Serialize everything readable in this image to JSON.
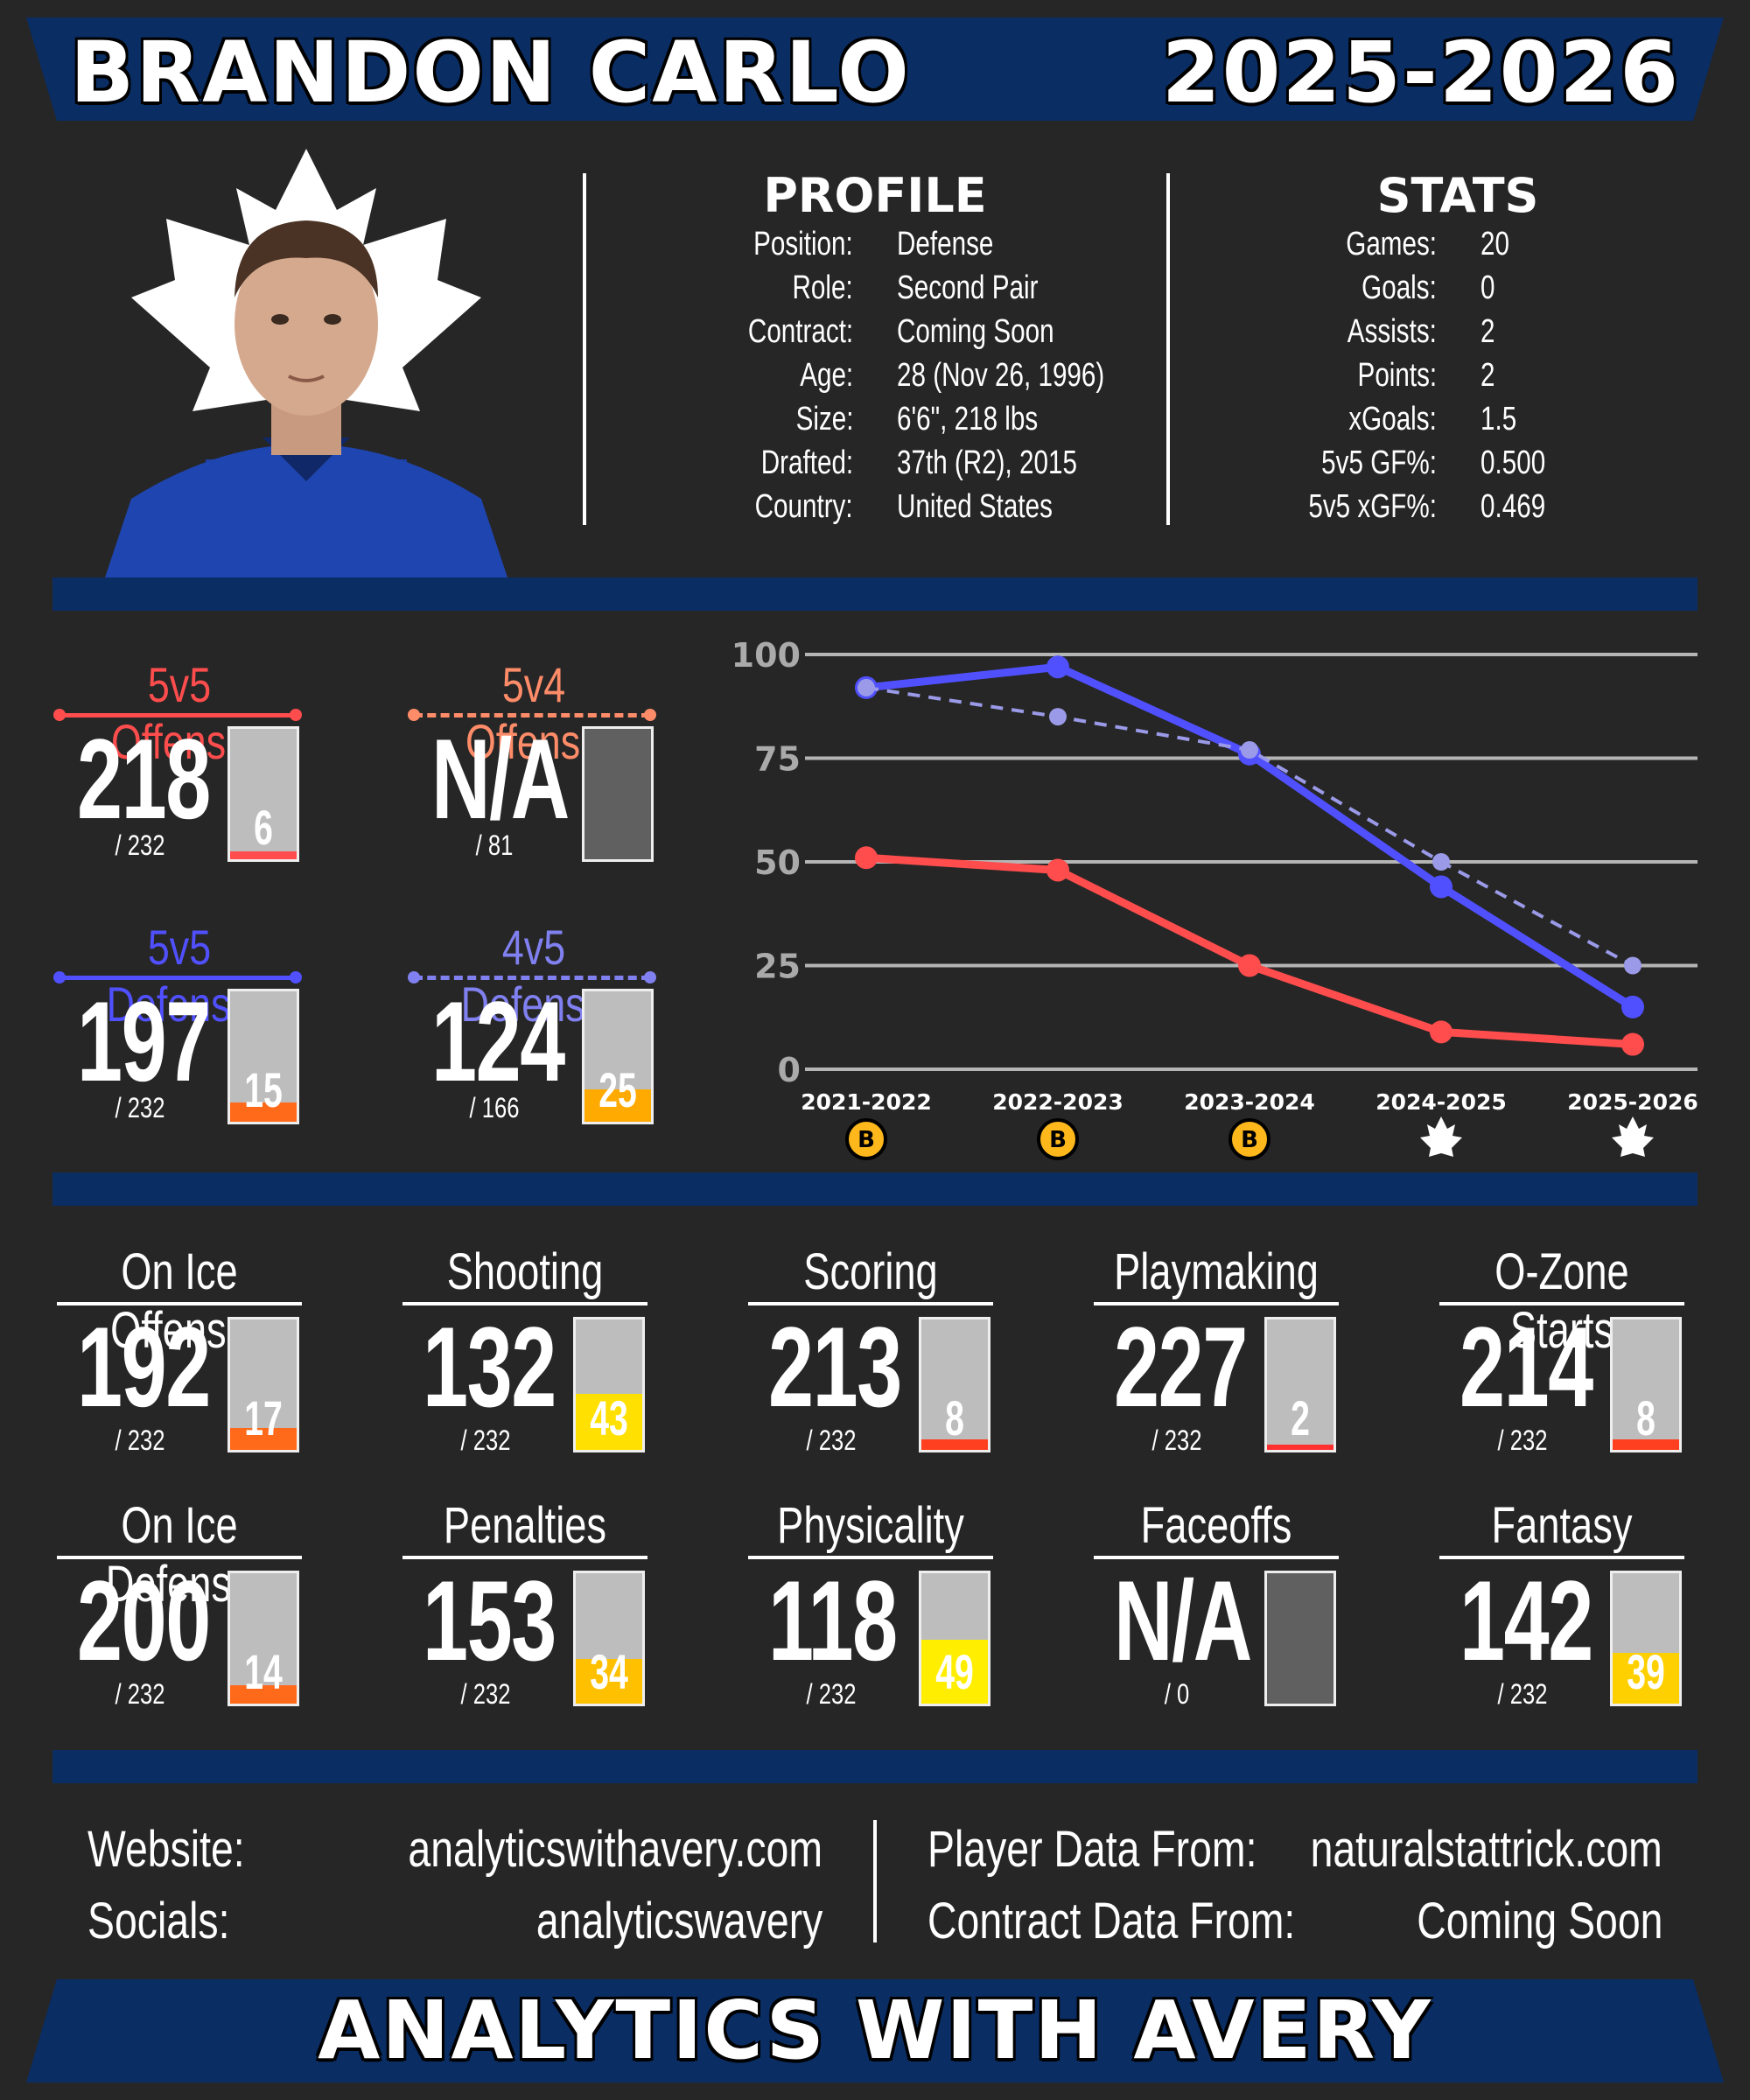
{
  "header": {
    "player_name": "BRANDON CARLO",
    "season": "2025-2026"
  },
  "profile": {
    "title": "PROFILE",
    "rows": [
      {
        "label": "Position:",
        "value": "Defense"
      },
      {
        "label": "Role:",
        "value": "Second Pair"
      },
      {
        "label": "Contract:",
        "value": "Coming Soon"
      },
      {
        "label": "Age:",
        "value": "28 (Nov 26, 1996)"
      },
      {
        "label": "Size:",
        "value": "6'6\", 218 lbs"
      },
      {
        "label": "Drafted:",
        "value": "37th (R2), 2015"
      },
      {
        "label": "Country:",
        "value": "United States"
      }
    ]
  },
  "stats": {
    "title": "STATS",
    "rows": [
      {
        "label": "Games:",
        "value": "20"
      },
      {
        "label": "Goals:",
        "value": "0"
      },
      {
        "label": "Assists:",
        "value": "2"
      },
      {
        "label": "Points:",
        "value": "2"
      },
      {
        "label": "xGoals:",
        "value": "1.5"
      },
      {
        "label": "5v5 GF%:",
        "value": "0.500"
      },
      {
        "label": "5v5 xGF%:",
        "value": "0.469"
      }
    ]
  },
  "metrics": [
    {
      "label": "5v5 Offense",
      "value": "218",
      "total": "/ 232",
      "rank": "6",
      "pct": 6,
      "color": "#ff4d4d",
      "line_color": "#ff4d4d",
      "dashed": false
    },
    {
      "label": "5v4 Offense",
      "value": "N/A",
      "total": "/ 81",
      "rank": "",
      "pct": null,
      "color": "#ff8c69",
      "line_color": "#ff8c69",
      "dashed": true
    },
    {
      "label": "5v5 Defense",
      "value": "197",
      "total": "/ 232",
      "rank": "15",
      "pct": 15,
      "color": "#ff6a1a",
      "line_color": "#5050ff",
      "dashed": false
    },
    {
      "label": "4v5 Defense",
      "value": "124",
      "total": "/ 166",
      "rank": "25",
      "pct": 25,
      "color": "#ffaa00",
      "line_color": "#8080f0",
      "dashed": true
    }
  ],
  "chart_data": {
    "type": "line",
    "categories": [
      "2021-2022",
      "2022-2023",
      "2023-2024",
      "2024-2025",
      "2025-2026"
    ],
    "team_icons": [
      "bruins-logo-icon",
      "bruins-logo-icon",
      "bruins-logo-icon",
      "maple-leafs-logo-icon",
      "maple-leafs-logo-icon"
    ],
    "ylim": [
      0,
      100
    ],
    "yticks": [
      0,
      25,
      50,
      75,
      100
    ],
    "grid": true,
    "series": [
      {
        "name": "5v5 Offense",
        "color": "#ff4d4d",
        "dashed": false,
        "values": [
          51,
          48,
          25,
          9,
          6
        ]
      },
      {
        "name": "5v5 Defense",
        "color": "#5050ff",
        "dashed": false,
        "values": [
          92,
          97,
          76,
          44,
          15
        ]
      },
      {
        "name": "4v5 Defense",
        "color": "#9a9ae8",
        "dashed": true,
        "values": [
          92,
          85,
          77,
          50,
          25
        ]
      }
    ]
  },
  "categories": [
    {
      "label": "On Ice Offense",
      "value": "192",
      "total": "/ 232",
      "rank": "17",
      "pct": 17,
      "color": "#ff6a1a"
    },
    {
      "label": "Shooting",
      "value": "132",
      "total": "/ 232",
      "rank": "43",
      "pct": 43,
      "color": "#ffe000"
    },
    {
      "label": "Scoring",
      "value": "213",
      "total": "/ 232",
      "rank": "8",
      "pct": 8,
      "color": "#ff4020"
    },
    {
      "label": "Playmaking",
      "value": "227",
      "total": "/ 232",
      "rank": "2",
      "pct": 2,
      "color": "#ff3030"
    },
    {
      "label": "O-Zone Starts",
      "value": "214",
      "total": "/ 232",
      "rank": "8",
      "pct": 8,
      "color": "#ff4020"
    },
    {
      "label": "On Ice Defense",
      "value": "200",
      "total": "/ 232",
      "rank": "14",
      "pct": 14,
      "color": "#ff6a1a"
    },
    {
      "label": "Penalties",
      "value": "153",
      "total": "/ 232",
      "rank": "34",
      "pct": 34,
      "color": "#ffc000"
    },
    {
      "label": "Physicality",
      "value": "118",
      "total": "/ 232",
      "rank": "49",
      "pct": 49,
      "color": "#ffee00"
    },
    {
      "label": "Faceoffs",
      "value": "N/A",
      "total": "/ 0",
      "rank": "",
      "pct": null,
      "color": "#606060"
    },
    {
      "label": "Fantasy",
      "value": "142",
      "total": "/ 232",
      "rank": "39",
      "pct": 39,
      "color": "#ffd000"
    }
  ],
  "footer": {
    "website_label": "Website:",
    "website": "analyticswithavery.com",
    "socials_label": "Socials:",
    "socials": "analyticswavery",
    "player_data_label": "Player Data From:",
    "player_data": "naturalstattrick.com",
    "contract_data_label": "Contract Data From:",
    "contract_data": "Coming Soon",
    "brand": "ANALYTICS WITH AVERY"
  },
  "colors": {
    "navy": "#0a2d63",
    "background": "#262626"
  }
}
